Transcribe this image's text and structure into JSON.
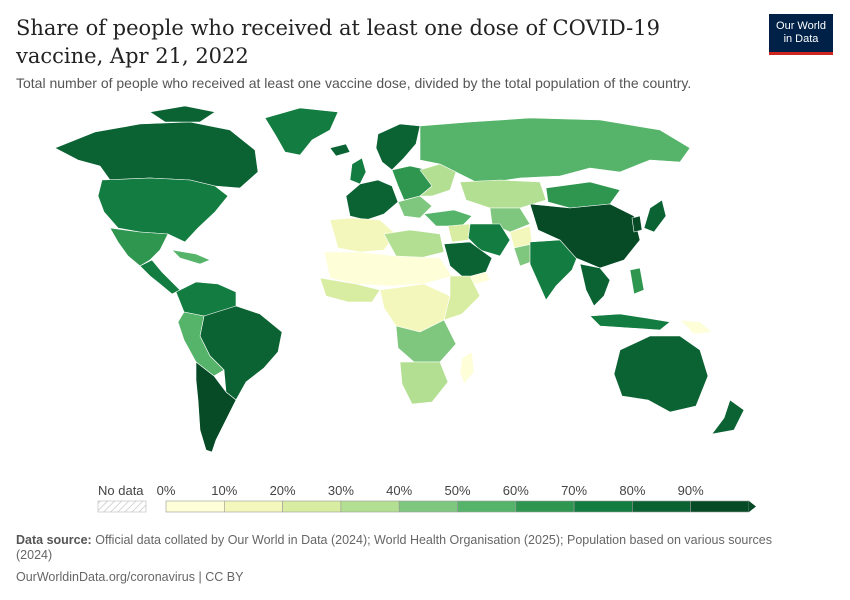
{
  "title": "Share of people who received at least one dose of COVID-19 vaccine, Apr 21, 2022",
  "subtitle": "Total number of people who received at least one vaccine dose, divided by the total population of the country.",
  "logo": {
    "line1": "Our World",
    "line2": "in Data"
  },
  "legend": {
    "no_data_label": "No data",
    "ticks": [
      "0%",
      "10%",
      "20%",
      "30%",
      "40%",
      "50%",
      "60%",
      "70%",
      "80%",
      "90%"
    ],
    "colors": [
      "#fefed8",
      "#f4f7bb",
      "#d9eda2",
      "#b3df92",
      "#7fc77f",
      "#55b46a",
      "#2f9650",
      "#137c40",
      "#0b6233",
      "#064a26"
    ]
  },
  "footer": {
    "source_label": "Data source:",
    "source_text": "Official data collated by Our World in Data (2024); World Health Organisation (2025); Population based on various sources (2024)",
    "url": "OurWorldinData.org/coronavirus | CC BY"
  }
}
